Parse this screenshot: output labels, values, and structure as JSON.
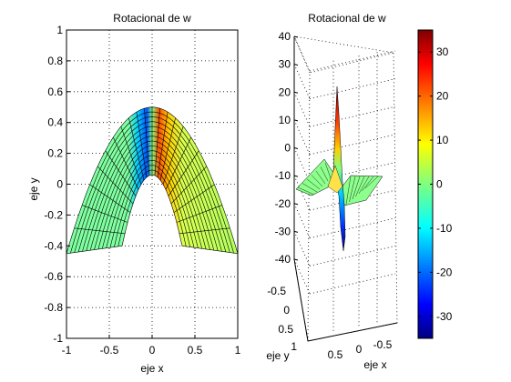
{
  "chart_data": [
    {
      "type": "surface",
      "view": "top",
      "title": "Rotacional de w",
      "xlabel": "eje x",
      "ylabel": "eje y",
      "xlim": [
        -1,
        1
      ],
      "ylim": [
        -1,
        1
      ],
      "xticks": [
        -1,
        -0.5,
        0,
        0.5,
        1
      ],
      "xtick_labels": [
        "-1",
        "-0.5",
        "0",
        "0.5",
        "1"
      ],
      "yticks": [
        1,
        0.8,
        0.6,
        0.4,
        0.2,
        0,
        -0.2,
        -0.4,
        -0.6,
        -0.8,
        -1
      ],
      "ytick_labels": [
        "1",
        "0.8",
        "0.6",
        "0.4",
        "0.2",
        "0",
        "-0.2",
        "-0.4",
        "-0.6",
        "-0.8",
        "-1"
      ],
      "grid": true,
      "surface": {
        "shape": "parabolic strip (arch)",
        "outer_curve": {
          "apex_y": 0.5,
          "end_y": -0.45,
          "x_range": [
            -1,
            1
          ]
        },
        "inner_curve": {
          "apex_y": 0.06,
          "end_y": -0.4,
          "x_range": [
            -0.35,
            0.35
          ]
        }
      }
    },
    {
      "type": "surface",
      "view": "3d",
      "title": "Rotacional de w",
      "xlabel": "eje x",
      "ylabel": "eje y",
      "zlim": [
        -40,
        40
      ],
      "zticks": [
        40,
        30,
        20,
        10,
        0,
        -10,
        -20,
        -30,
        -40
      ],
      "ztick_labels": [
        "40",
        "30",
        "20",
        "10",
        "0",
        "-10",
        "-20",
        "-30",
        "-40"
      ],
      "yticks": [
        -0.5,
        0,
        0.5,
        1
      ],
      "ytick_labels": [
        "-0.5",
        "0",
        "0.5",
        "1"
      ],
      "xticks": [
        0.5,
        0,
        -0.5
      ],
      "xtick_labels": [
        "0.5",
        "0",
        "-0.5"
      ],
      "grid": true,
      "peak": {
        "max_z": 22,
        "min_z": -37
      }
    }
  ],
  "colorbar": {
    "colormap": "jet",
    "clim": [
      -35,
      35
    ],
    "ticks": [
      30,
      20,
      10,
      0,
      -10,
      -20,
      -30
    ],
    "tick_labels": [
      "30",
      "20",
      "10",
      "0",
      "-10",
      "-20",
      "-30"
    ]
  }
}
